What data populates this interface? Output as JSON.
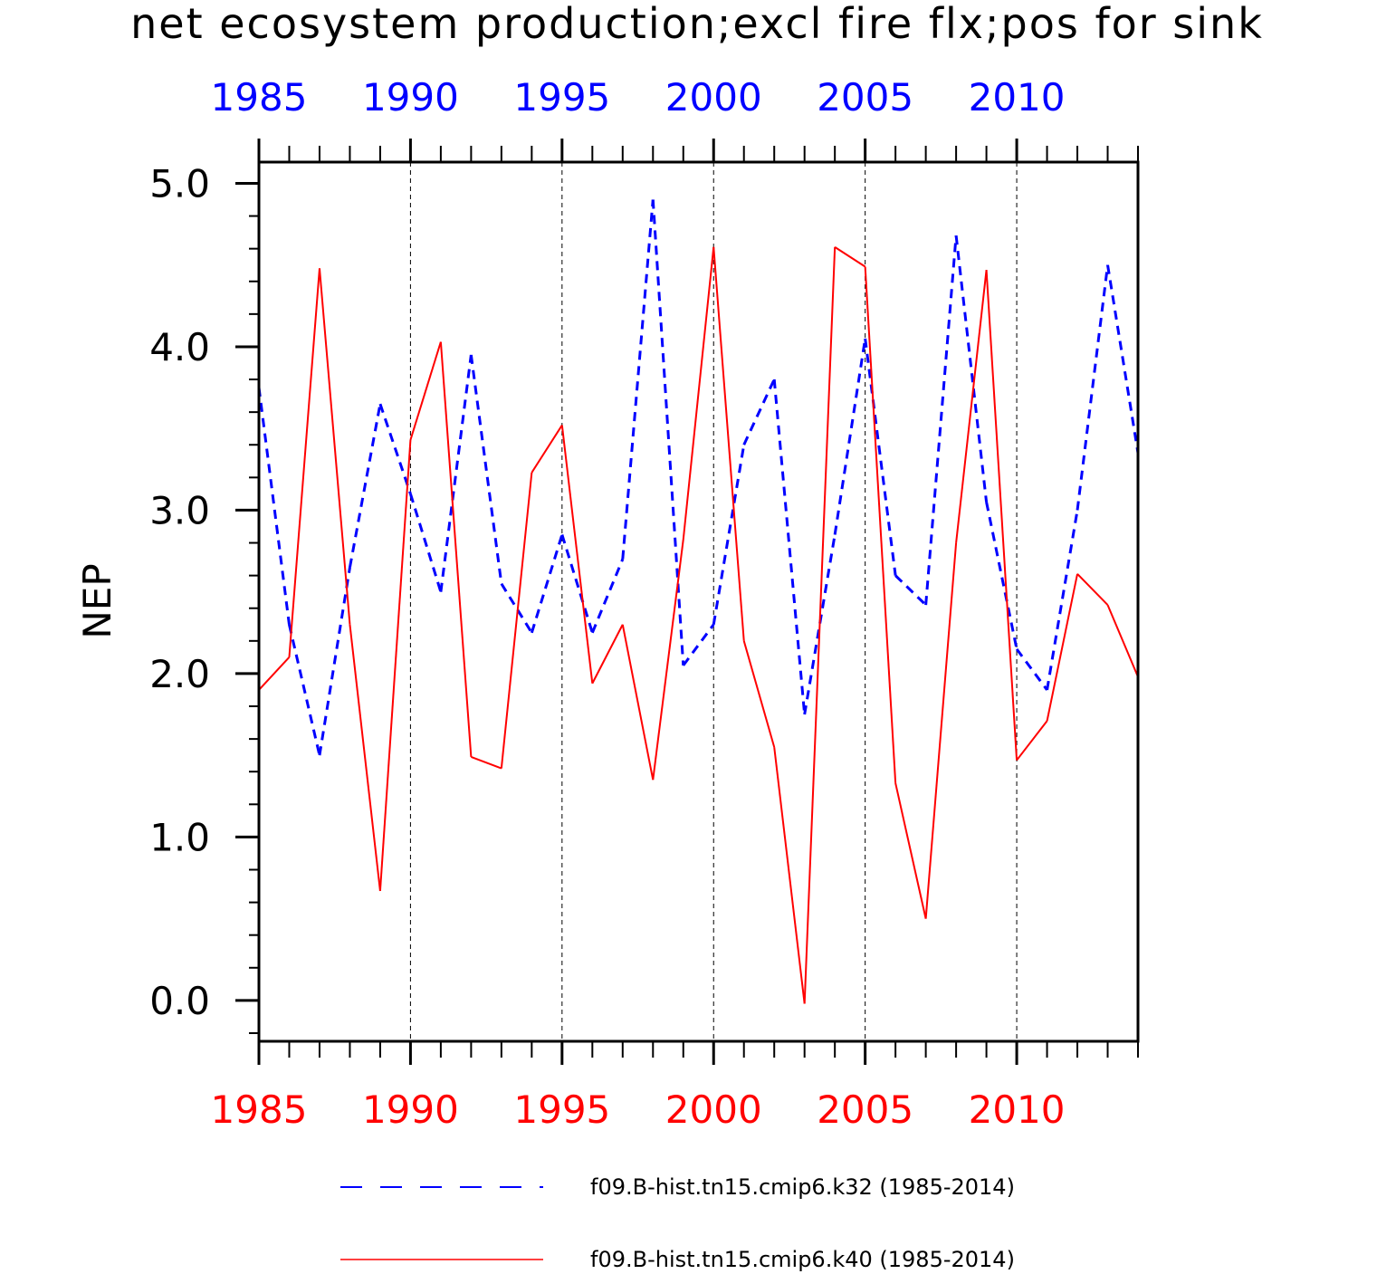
{
  "chart_data": {
    "type": "line",
    "title": "net ecosystem production;excl fire flx;pos for sink",
    "xlabel": "",
    "ylabel": "NEP",
    "xlim": [
      1985,
      2014
    ],
    "ylim": [
      -0.25,
      5.13
    ],
    "x_ticks": [
      "1985",
      "1990",
      "1995",
      "2000",
      "2005",
      "2010"
    ],
    "y_ticks": [
      "0.0",
      "1.0",
      "2.0",
      "3.0",
      "4.0",
      "5.0"
    ],
    "top_axis_color": "#0000ff",
    "bottom_axis_color": "#ff0000",
    "grid": "vertical dashed at major x ticks",
    "legend_position": "bottom",
    "x": [
      1985,
      1986,
      1987,
      1988,
      1989,
      1990,
      1991,
      1992,
      1993,
      1994,
      1995,
      1996,
      1997,
      1998,
      1999,
      2000,
      2001,
      2002,
      2003,
      2004,
      2005,
      2006,
      2007,
      2008,
      2009,
      2010,
      2011,
      2012,
      2013,
      2014
    ],
    "series": [
      {
        "name": "f09.B-hist.tn15.cmip6.k32 (1985-2014)",
        "color": "#0000ff",
        "style": "dashed",
        "values": [
          3.75,
          2.3,
          1.5,
          2.65,
          3.65,
          3.1,
          2.5,
          3.95,
          2.55,
          2.25,
          2.85,
          2.25,
          2.7,
          4.9,
          2.05,
          2.3,
          3.4,
          3.8,
          1.75,
          2.85,
          4.05,
          2.6,
          2.42,
          4.68,
          3.05,
          2.15,
          1.9,
          3.0,
          4.5,
          3.35
        ]
      },
      {
        "name": "f09.B-hist.tn15.cmip6.k40 (1985-2014)",
        "color": "#ff0000",
        "style": "solid",
        "values": [
          1.9,
          2.1,
          4.48,
          2.3,
          0.67,
          3.43,
          4.03,
          1.49,
          1.42,
          3.23,
          3.52,
          1.94,
          2.3,
          1.35,
          2.82,
          4.61,
          2.2,
          1.55,
          -0.02,
          4.61,
          4.49,
          1.33,
          0.5,
          2.8,
          4.47,
          1.47,
          1.71,
          2.61,
          2.42,
          1.98
        ]
      }
    ]
  }
}
